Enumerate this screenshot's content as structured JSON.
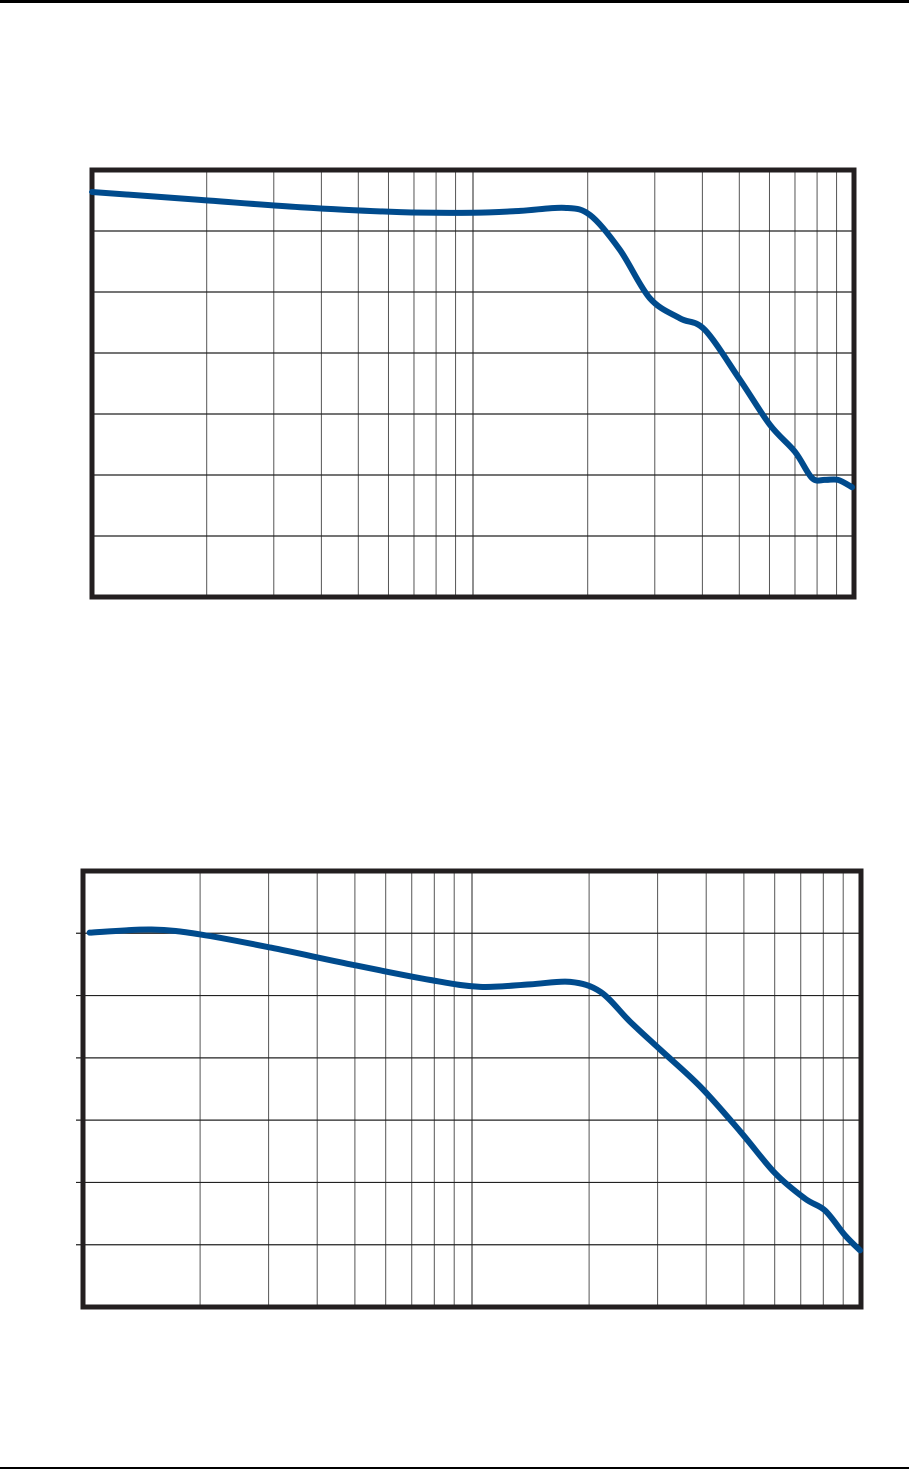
{
  "colors": {
    "curve": "#004b8d",
    "frame": "#231f20",
    "grid": "#555555",
    "page_rule": "#000000"
  },
  "chart_data": [
    {
      "type": "line",
      "title": "",
      "xlabel": "",
      "ylabel": "",
      "x_scale": "log",
      "xlim": [
        1,
        100
      ],
      "ylim": [
        0,
        7
      ],
      "grid": true,
      "tick_labels": "none",
      "series": [
        {
          "x": [
            1,
            1.92,
            3.52,
            6.43,
            10,
            13.3,
            17.4,
            20.3,
            24.3,
            29.1,
            34.9,
            40.6,
            50.2,
            60.2,
            70.0,
            77.6,
            83.9,
            90.8,
            98.8
          ],
          "y": [
            6.64,
            6.51,
            6.39,
            6.31,
            6.3,
            6.33,
            6.38,
            6.26,
            5.69,
            4.9,
            4.57,
            4.38,
            3.56,
            2.82,
            2.38,
            1.95,
            1.92,
            1.92,
            1.8
          ]
        }
      ]
    },
    {
      "type": "line",
      "title": "",
      "xlabel": "",
      "ylabel": "",
      "x_scale": "log",
      "xlim": [
        1,
        100
      ],
      "ylim": [
        0,
        7
      ],
      "grid": true,
      "tick_labels": "none",
      "series": [
        {
          "x": [
            1.04,
            1.5,
            2.01,
            3.04,
            4.88,
            7.82,
            10.5,
            14.1,
            17.9,
            21.4,
            25.5,
            30.5,
            38.6,
            48.9,
            60.1,
            71.8,
            80.8,
            91.0,
            99.4
          ],
          "y": [
            6.01,
            6.06,
            5.98,
            5.77,
            5.5,
            5.25,
            5.14,
            5.18,
            5.22,
            5.06,
            4.58,
            4.13,
            3.54,
            2.82,
            2.15,
            1.74,
            1.55,
            1.15,
            0.91
          ]
        }
      ]
    }
  ]
}
